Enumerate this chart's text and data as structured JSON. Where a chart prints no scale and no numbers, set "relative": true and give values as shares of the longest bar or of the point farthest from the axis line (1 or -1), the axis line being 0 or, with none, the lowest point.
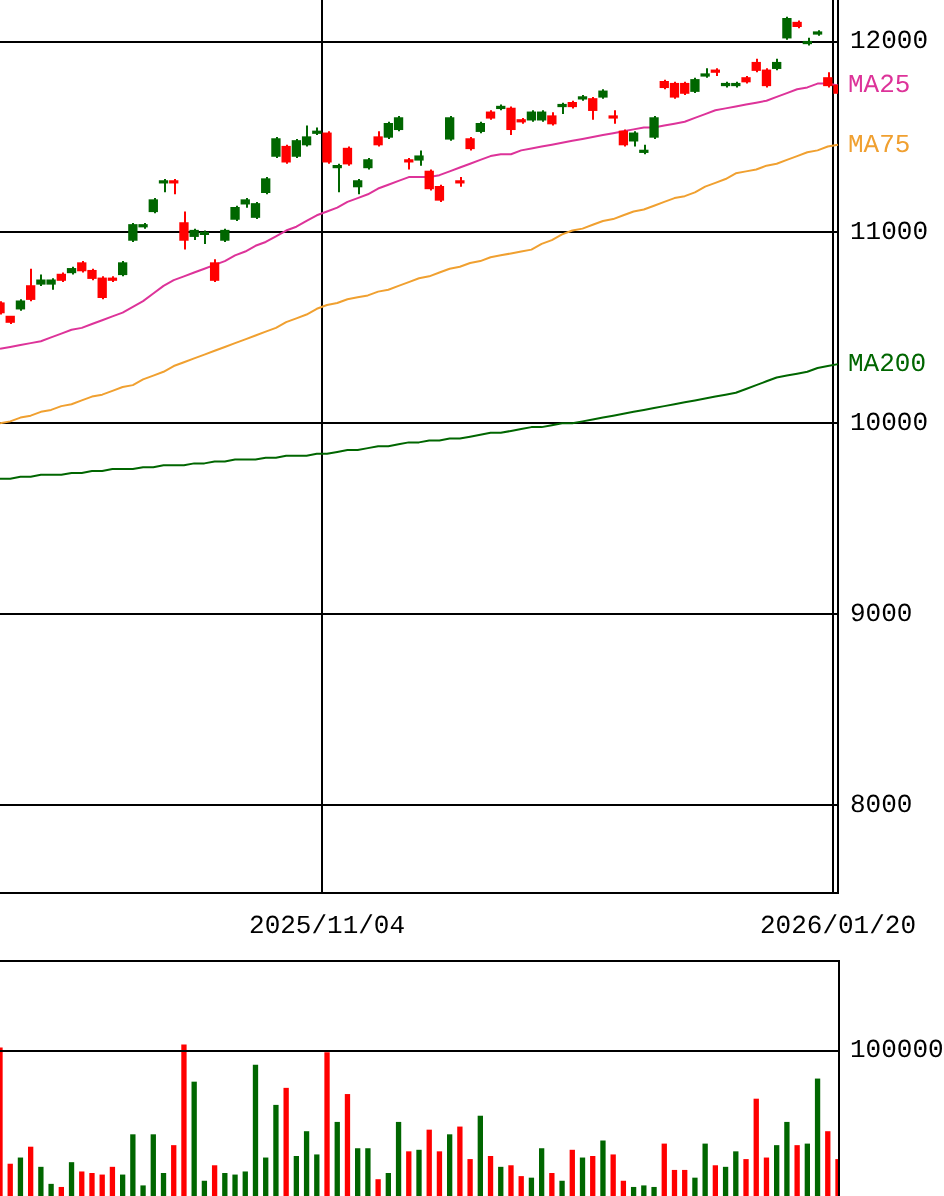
{
  "chart_data": [
    {
      "type": "candlestick",
      "categories": [
        null,
        null,
        null,
        null,
        null,
        null,
        null,
        null,
        null,
        null,
        null,
        null,
        null,
        null,
        null,
        null,
        null,
        null,
        null,
        null,
        null,
        null,
        null,
        null,
        null,
        null,
        null,
        null,
        null,
        null,
        null,
        null,
        "2025/11/04",
        null,
        null,
        null,
        null,
        null,
        null,
        null,
        null,
        null,
        null,
        null,
        null,
        null,
        null,
        null,
        null,
        null,
        null,
        null,
        null,
        null,
        null,
        null,
        null,
        null,
        null,
        null,
        null,
        null,
        null,
        null,
        null,
        null,
        null,
        null,
        null,
        null,
        null,
        null,
        null,
        null,
        null,
        null,
        null,
        null,
        null,
        null,
        null,
        null,
        "2026/01/20"
      ],
      "ohlc": [
        [
          10580,
          10640,
          10570,
          10630
        ],
        [
          10530,
          10560,
          10520,
          10560
        ],
        [
          10640,
          10650,
          10590,
          10600
        ],
        [
          10650,
          10810,
          10640,
          10720
        ],
        [
          10750,
          10780,
          10720,
          10730
        ],
        [
          10750,
          10760,
          10700,
          10730
        ],
        [
          10750,
          10790,
          10740,
          10780
        ],
        [
          10810,
          10820,
          10780,
          10790
        ],
        [
          10800,
          10850,
          10790,
          10840
        ],
        [
          10760,
          10810,
          10750,
          10800
        ],
        [
          10660,
          10770,
          10650,
          10760
        ],
        [
          10750,
          10770,
          10740,
          10760
        ],
        [
          10840,
          10850,
          10770,
          10780
        ],
        [
          11040,
          11050,
          10950,
          10960
        ],
        [
          11040,
          11050,
          11020,
          11030
        ],
        [
          11170,
          11180,
          11100,
          11110
        ],
        [
          11270,
          11280,
          11210,
          11260
        ],
        [
          11260,
          11280,
          11200,
          11270
        ],
        [
          10960,
          11110,
          10910,
          11050
        ],
        [
          11010,
          11020,
          10960,
          10980
        ],
        [
          11000,
          11010,
          10940,
          10990
        ],
        [
          10750,
          10860,
          10740,
          10840
        ],
        [
          11010,
          11020,
          10950,
          10960
        ],
        [
          11130,
          11140,
          11060,
          11070
        ],
        [
          11170,
          11180,
          11130,
          11150
        ],
        [
          11150,
          11160,
          11070,
          11080
        ],
        [
          11280,
          11290,
          11200,
          11210
        ],
        [
          11490,
          11500,
          11390,
          11400
        ],
        [
          11370,
          11460,
          11360,
          11450
        ],
        [
          11480,
          11490,
          11390,
          11400
        ],
        [
          11500,
          11560,
          11450,
          11460
        ],
        [
          11530,
          11550,
          11510,
          11520
        ],
        [
          11370,
          11530,
          11360,
          11520
        ],
        [
          11350,
          11360,
          11210,
          11340
        ],
        [
          11360,
          11450,
          11350,
          11440
        ],
        [
          11270,
          11280,
          11200,
          11240
        ],
        [
          11380,
          11390,
          11330,
          11340
        ],
        [
          11460,
          11530,
          11450,
          11500
        ],
        [
          11570,
          11580,
          11490,
          11500
        ],
        [
          11600,
          11610,
          11530,
          11540
        ],
        [
          11370,
          11390,
          11330,
          11380
        ],
        [
          11400,
          11430,
          11350,
          11380
        ],
        [
          11230,
          11330,
          11220,
          11320
        ],
        [
          11170,
          11250,
          11160,
          11240
        ],
        [
          11600,
          11610,
          11480,
          11490
        ],
        [
          11260,
          11290,
          11240,
          11270
        ],
        [
          11440,
          11500,
          11430,
          11490
        ],
        [
          11570,
          11580,
          11520,
          11530
        ],
        [
          11600,
          11640,
          11590,
          11630
        ],
        [
          11660,
          11670,
          11640,
          11650
        ],
        [
          11540,
          11660,
          11510,
          11650
        ],
        [
          11580,
          11600,
          11570,
          11590
        ],
        [
          11630,
          11640,
          11580,
          11590
        ],
        [
          11630,
          11640,
          11580,
          11590
        ],
        [
          11570,
          11630,
          11560,
          11610
        ],
        [
          11670,
          11680,
          11620,
          11660
        ],
        [
          11660,
          11690,
          11650,
          11680
        ],
        [
          11710,
          11720,
          11690,
          11700
        ],
        [
          11640,
          11710,
          11590,
          11700
        ],
        [
          11740,
          11750,
          11700,
          11710
        ],
        [
          11600,
          11640,
          11570,
          11610
        ],
        [
          11460,
          11540,
          11450,
          11530
        ],
        [
          11520,
          11530,
          11450,
          11480
        ],
        [
          11430,
          11460,
          11410,
          11420
        ],
        [
          11600,
          11610,
          11490,
          11500
        ],
        [
          11760,
          11800,
          11750,
          11790
        ],
        [
          11710,
          11790,
          11700,
          11780
        ],
        [
          11730,
          11790,
          11720,
          11780
        ],
        [
          11800,
          11810,
          11730,
          11740
        ],
        [
          11830,
          11860,
          11810,
          11820
        ],
        [
          11840,
          11860,
          11820,
          11850
        ],
        [
          11780,
          11790,
          11760,
          11770
        ],
        [
          11780,
          11790,
          11760,
          11770
        ],
        [
          11790,
          11820,
          11780,
          11810
        ],
        [
          11850,
          11910,
          11840,
          11890
        ],
        [
          11770,
          11860,
          11760,
          11850
        ],
        [
          11890,
          11910,
          11850,
          11860
        ],
        [
          12120,
          12130,
          12010,
          12020
        ],
        [
          12080,
          12110,
          12070,
          12100
        ],
        [
          12000,
          12020,
          11980,
          11990
        ],
        [
          12050,
          12060,
          12030,
          12040
        ],
        [
          11770,
          11840,
          11760,
          11810
        ],
        [
          11730,
          11780,
          11720,
          11770
        ]
      ],
      "colors": [
        "#ff0000",
        "#ff0000",
        "#006600",
        "#ff0000",
        "#006600",
        "#006600",
        "#ff0000",
        "#006600",
        "#ff0000",
        "#ff0000",
        "#ff0000",
        "#ff0000",
        "#006600",
        "#006600",
        "#006600",
        "#006600",
        "#006600",
        "#ff0000",
        "#ff0000",
        "#006600",
        "#006600",
        "#ff0000",
        "#006600",
        "#006600",
        "#006600",
        "#006600",
        "#006600",
        "#006600",
        "#ff0000",
        "#006600",
        "#006600",
        "#006600",
        "#ff0000",
        "#006600",
        "#ff0000",
        "#006600",
        "#006600",
        "#ff0000",
        "#006600",
        "#006600",
        "#ff0000",
        "#006600",
        "#ff0000",
        "#ff0000",
        "#006600",
        "#ff0000",
        "#ff0000",
        "#006600",
        "#ff0000",
        "#006600",
        "#ff0000",
        "#ff0000",
        "#006600",
        "#006600",
        "#ff0000",
        "#006600",
        "#ff0000",
        "#006600",
        "#ff0000",
        "#006600",
        "#ff0000",
        "#ff0000",
        "#006600",
        "#006600",
        "#006600",
        "#ff0000",
        "#ff0000",
        "#ff0000",
        "#006600",
        "#006600",
        "#ff0000",
        "#006600",
        "#006600",
        "#ff0000",
        "#ff0000",
        "#ff0000",
        "#006600",
        "#006600",
        "#ff0000",
        "#006600",
        "#006600",
        "#ff0000",
        "#ff0000"
      ],
      "series": [
        {
          "type": "line",
          "name": "MA25",
          "color": "#dd3399",
          "values": [
            10390,
            10400,
            10410,
            10420,
            10430,
            10450,
            10470,
            10490,
            10500,
            10520,
            10540,
            10560,
            10580,
            10610,
            10640,
            10680,
            10720,
            10750,
            10770,
            10790,
            10810,
            10830,
            10850,
            10880,
            10900,
            10930,
            10950,
            10980,
            11010,
            11030,
            11060,
            11090,
            11110,
            11130,
            11160,
            11180,
            11200,
            11230,
            11250,
            11270,
            11290,
            11290,
            11290,
            11300,
            11320,
            11340,
            11360,
            11380,
            11400,
            11410,
            11410,
            11430,
            11440,
            11450,
            11460,
            11470,
            11480,
            11490,
            11500,
            11510,
            11520,
            11530,
            11540,
            11550,
            11550,
            11560,
            11570,
            11580,
            11600,
            11620,
            11640,
            11650,
            11660,
            11670,
            11680,
            11690,
            11710,
            11730,
            11750,
            11760,
            11780,
            11780,
            11770
          ]
        },
        {
          "type": "line",
          "name": "MA75",
          "color": "#f0a030",
          "values": [
            10000,
            10010,
            10030,
            10040,
            10060,
            10070,
            10090,
            10100,
            10120,
            10140,
            10150,
            10170,
            10190,
            10200,
            10230,
            10250,
            10270,
            10300,
            10320,
            10340,
            10360,
            10380,
            10400,
            10420,
            10440,
            10460,
            10480,
            10500,
            10530,
            10550,
            10570,
            10600,
            10620,
            10630,
            10650,
            10660,
            10670,
            10690,
            10700,
            10720,
            10740,
            10760,
            10770,
            10790,
            10810,
            10820,
            10840,
            10850,
            10870,
            10880,
            10890,
            10900,
            10910,
            10940,
            10960,
            10990,
            11010,
            11020,
            11040,
            11060,
            11070,
            11090,
            11110,
            11120,
            11140,
            11160,
            11180,
            11190,
            11210,
            11240,
            11260,
            11280,
            11310,
            11320,
            11330,
            11350,
            11360,
            11380,
            11400,
            11420,
            11430,
            11450,
            11460
          ]
        },
        {
          "type": "line",
          "name": "MA200",
          "color": "#006600",
          "values": [
            9710,
            9710,
            9720,
            9720,
            9730,
            9730,
            9730,
            9740,
            9740,
            9750,
            9750,
            9760,
            9760,
            9760,
            9770,
            9770,
            9780,
            9780,
            9780,
            9790,
            9790,
            9800,
            9800,
            9810,
            9810,
            9810,
            9820,
            9820,
            9830,
            9830,
            9830,
            9840,
            9840,
            9850,
            9860,
            9860,
            9870,
            9880,
            9880,
            9890,
            9900,
            9900,
            9910,
            9910,
            9920,
            9920,
            9930,
            9940,
            9950,
            9950,
            9960,
            9970,
            9980,
            9980,
            9990,
            10000,
            10000,
            10010,
            10020,
            10030,
            10040,
            10050,
            10060,
            10070,
            10080,
            10090,
            10100,
            10110,
            10120,
            10130,
            10140,
            10150,
            10160,
            10180,
            10200,
            10220,
            10240,
            10250,
            10260,
            10270,
            10290,
            10300,
            10310
          ]
        }
      ],
      "ylim": [
        7540,
        12220
      ],
      "yticks": [
        8000,
        9000,
        10000,
        11000,
        12000
      ],
      "grid": true,
      "legend": false
    },
    {
      "type": "bar",
      "relative": true,
      "categories": [
        null,
        null,
        null,
        null,
        null,
        null,
        null,
        null,
        null,
        null,
        null,
        null,
        null,
        null,
        null,
        null,
        null,
        null,
        null,
        null,
        null,
        null,
        null,
        null,
        null,
        null,
        null,
        null,
        null,
        null,
        null,
        null,
        null,
        null,
        null,
        null,
        null,
        null,
        null,
        null,
        null,
        null,
        null,
        null,
        null,
        null,
        null,
        null,
        null,
        null,
        null,
        null,
        null,
        null,
        null,
        null,
        null,
        null,
        null,
        null,
        null,
        null,
        null,
        null,
        null,
        null,
        null,
        null,
        null,
        null,
        null,
        null,
        null,
        null,
        null,
        null,
        null,
        null,
        null,
        null,
        null,
        null,
        null
      ],
      "values": [
        0.98,
        0.23,
        0.27,
        0.34,
        0.21,
        0.1,
        0.08,
        0.24,
        0.18,
        0.17,
        0.16,
        0.21,
        0.16,
        0.42,
        0.09,
        0.42,
        0.17,
        0.35,
        1,
        0.76,
        0.12,
        0.22,
        0.17,
        0.16,
        0.18,
        0.87,
        0.27,
        0.61,
        0.72,
        0.28,
        0.44,
        0.29,
        0.95,
        0.5,
        0.68,
        0.33,
        0.33,
        0.13,
        0.17,
        0.5,
        0.31,
        0.32,
        0.45,
        0.31,
        0.42,
        0.47,
        0.26,
        0.54,
        0.28,
        0.21,
        0.22,
        0.15,
        0.14,
        0.33,
        0.17,
        0.12,
        0.32,
        0.27,
        0.28,
        0.38,
        0.29,
        0.12,
        0.08,
        0.09,
        0.08,
        0.36,
        0.19,
        0.19,
        0.14,
        0.36,
        0.22,
        0.21,
        0.31,
        0.26,
        0.65,
        0.27,
        0.35,
        0.5,
        0.35,
        0.36,
        0.78,
        0.44,
        0.26
      ],
      "colors": [
        "#ff0000",
        "#ff0000",
        "#006600",
        "#ff0000",
        "#006600",
        "#006600",
        "#ff0000",
        "#006600",
        "#ff0000",
        "#ff0000",
        "#ff0000",
        "#ff0000",
        "#006600",
        "#006600",
        "#006600",
        "#006600",
        "#006600",
        "#ff0000",
        "#ff0000",
        "#006600",
        "#006600",
        "#ff0000",
        "#006600",
        "#006600",
        "#006600",
        "#006600",
        "#006600",
        "#006600",
        "#ff0000",
        "#006600",
        "#006600",
        "#006600",
        "#ff0000",
        "#006600",
        "#ff0000",
        "#006600",
        "#006600",
        "#ff0000",
        "#006600",
        "#006600",
        "#ff0000",
        "#006600",
        "#ff0000",
        "#ff0000",
        "#006600",
        "#ff0000",
        "#ff0000",
        "#006600",
        "#ff0000",
        "#006600",
        "#ff0000",
        "#ff0000",
        "#006600",
        "#006600",
        "#ff0000",
        "#006600",
        "#ff0000",
        "#006600",
        "#ff0000",
        "#006600",
        "#ff0000",
        "#ff0000",
        "#006600",
        "#006600",
        "#006600",
        "#ff0000",
        "#ff0000",
        "#ff0000",
        "#006600",
        "#006600",
        "#ff0000",
        "#006600",
        "#006600",
        "#ff0000",
        "#ff0000",
        "#ff0000",
        "#006600",
        "#006600",
        "#ff0000",
        "#006600",
        "#006600",
        "#ff0000",
        "#ff0000"
      ],
      "ref_lines": [
        {
          "axis": "y",
          "value": 0.97
        }
      ],
      "annotations": [
        "100000"
      ],
      "legend": false
    }
  ]
}
